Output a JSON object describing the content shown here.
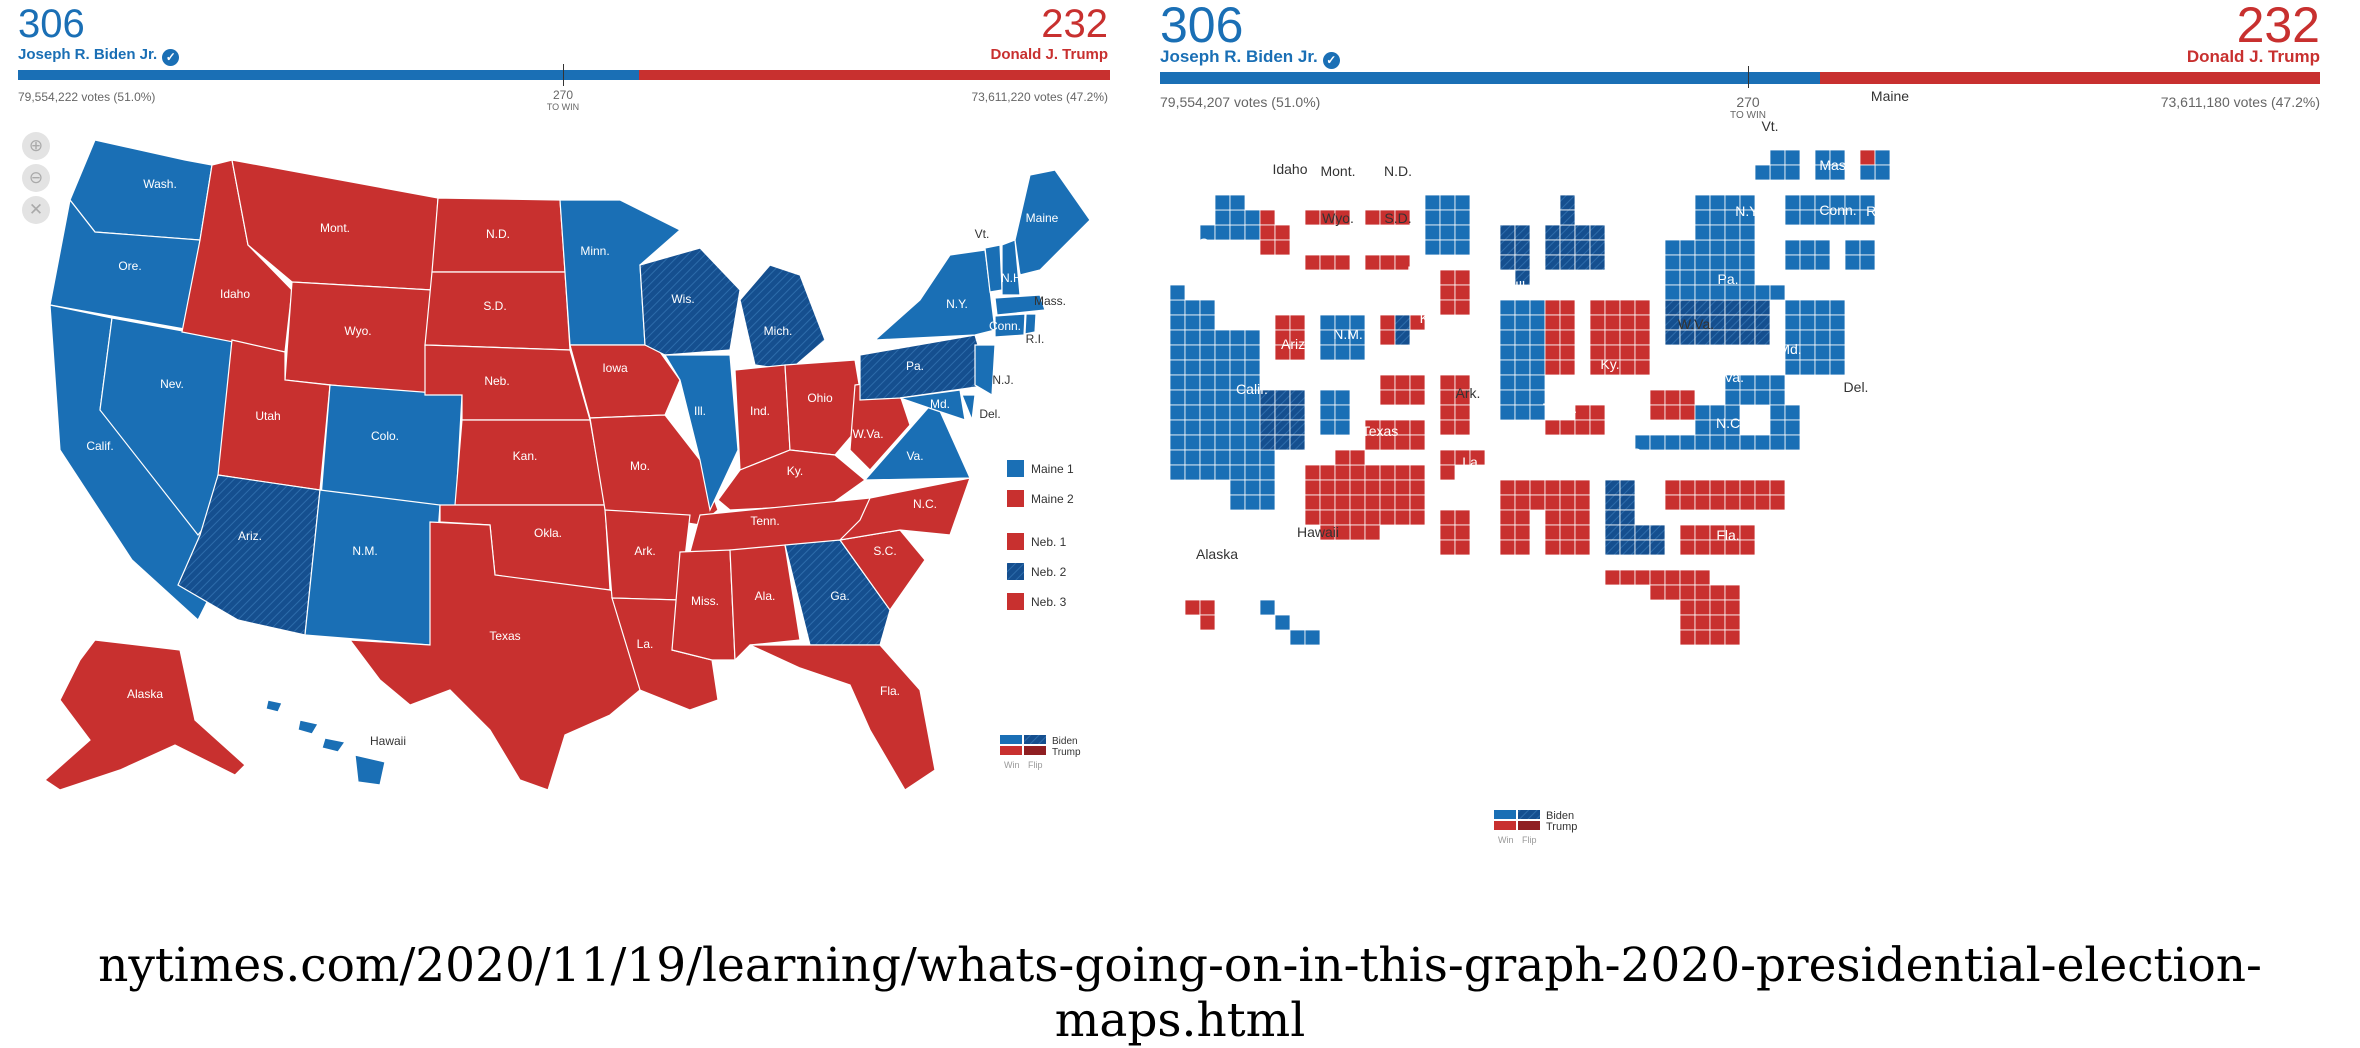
{
  "colors": {
    "biden": "#1a6fb5",
    "biden_flip": "#154f8f",
    "trump": "#c8302f",
    "trump_flip": "#8f1f22"
  },
  "left": {
    "biden": {
      "ev": "306",
      "name": "Joseph R. Biden Jr.",
      "votes": "79,554,222 votes (51.0%)",
      "won": true
    },
    "trump": {
      "ev": "232",
      "name": "Donald J. Trump",
      "votes": "73,611,220 votes (47.2%)"
    },
    "threshold": {
      "value": "270",
      "label": "TO WIN"
    },
    "biden_share": 0.569,
    "zoom_icons": [
      "zoom-in-icon",
      "zoom-out-icon",
      "reset-icon"
    ],
    "state_labels": [
      "Wash.",
      "Ore.",
      "Calif.",
      "Nev.",
      "Idaho",
      "Mont.",
      "Wyo.",
      "Utah",
      "Colo.",
      "Ariz.",
      "N.M.",
      "N.D.",
      "S.D.",
      "Neb.",
      "Kan.",
      "Okla.",
      "Texas",
      "Minn.",
      "Iowa",
      "Mo.",
      "Ark.",
      "La.",
      "Wis.",
      "Mich.",
      "Ill.",
      "Ind.",
      "Ohio",
      "Ky.",
      "Tenn.",
      "Miss.",
      "Ala.",
      "Ga.",
      "Fla.",
      "S.C.",
      "N.C.",
      "Va.",
      "W.Va.",
      "Pa.",
      "N.Y.",
      "Vt.",
      "N.H.",
      "Maine",
      "Mass.",
      "Conn.",
      "R.I.",
      "N.J.",
      "Del.",
      "Md.",
      "Alaska",
      "Hawaii"
    ],
    "split_legend": [
      {
        "label": "Maine 1",
        "party": "biden"
      },
      {
        "label": "Maine 2",
        "party": "trump"
      },
      {
        "label": "Neb. 1",
        "party": "trump"
      },
      {
        "label": "Neb. 2",
        "party": "biden_flip"
      },
      {
        "label": "Neb. 3",
        "party": "trump"
      }
    ],
    "key": {
      "biden": "Biden",
      "trump": "Trump",
      "win": "Win",
      "flip": "Flip"
    }
  },
  "right": {
    "biden": {
      "ev": "306",
      "name": "Joseph R. Biden Jr.",
      "votes": "79,554,207 votes (51.0%)",
      "won": true
    },
    "trump": {
      "ev": "232",
      "name": "Donald J. Trump",
      "votes": "73,611,180 votes (47.2%)"
    },
    "threshold": {
      "value": "270",
      "label": "TO WIN"
    },
    "biden_share": 0.569,
    "key": {
      "biden": "Biden",
      "trump": "Trump",
      "win": "Win",
      "flip": "Flip"
    }
  },
  "source": "nytimes.com/2020/11/19/learning/whats-going-on-in-this-graph-2020-presidential-election-maps.html"
}
